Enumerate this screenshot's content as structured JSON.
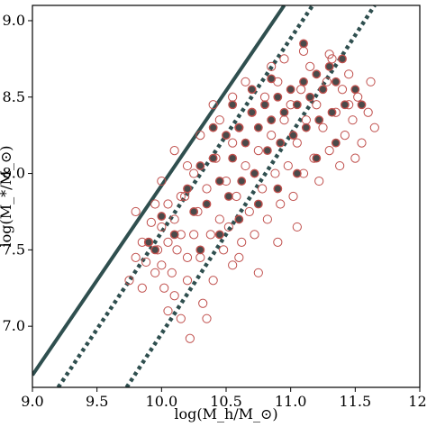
{
  "chart_data": {
    "type": "scatter",
    "title": "",
    "xlabel": "log(M_h/M_⊙)",
    "ylabel": "log(M_*/M_⊙)",
    "xlim": [
      9.0,
      12.0
    ],
    "ylim": [
      6.6,
      9.1
    ],
    "xticks": [
      "9.0",
      "9.5",
      "10.0",
      "10.5",
      "11.0",
      "11.5",
      "12."
    ],
    "yticks": [
      "7.0",
      "7.5",
      "8.0",
      "8.5",
      "9.0"
    ],
    "grid": false,
    "colors": {
      "open_marker_edge": "#c0504d",
      "filled_marker_fill": "#4a4a4a",
      "relation_line": "#2f4f4f"
    },
    "lines": [
      {
        "style": "solid",
        "x": [
          9.0,
          10.95
        ],
        "y": [
          6.68,
          9.1
        ]
      },
      {
        "style": "dotted",
        "x": [
          9.2,
          11.17
        ],
        "y": [
          6.6,
          9.1
        ]
      },
      {
        "style": "dotted",
        "x": [
          9.73,
          11.65
        ],
        "y": [
          6.6,
          9.1
        ]
      }
    ],
    "series": [
      {
        "marker": "open-circle",
        "points": [
          [
            9.75,
            7.3
          ],
          [
            9.8,
            7.45
          ],
          [
            9.85,
            7.55
          ],
          [
            9.88,
            7.42
          ],
          [
            9.9,
            7.55
          ],
          [
            9.92,
            7.68
          ],
          [
            9.95,
            7.8
          ],
          [
            9.95,
            7.35
          ],
          [
            9.97,
            7.5
          ],
          [
            10.0,
            7.65
          ],
          [
            10.0,
            7.4
          ],
          [
            10.02,
            7.25
          ],
          [
            10.05,
            7.8
          ],
          [
            10.05,
            7.55
          ],
          [
            10.08,
            7.35
          ],
          [
            10.1,
            7.7
          ],
          [
            10.1,
            7.2
          ],
          [
            10.12,
            7.5
          ],
          [
            10.15,
            7.6
          ],
          [
            10.15,
            7.05
          ],
          [
            10.18,
            7.85
          ],
          [
            10.2,
            7.45
          ],
          [
            10.2,
            7.3
          ],
          [
            10.22,
            6.92
          ],
          [
            10.25,
            8.0
          ],
          [
            10.25,
            7.6
          ],
          [
            10.28,
            7.75
          ],
          [
            10.3,
            7.45
          ],
          [
            10.32,
            7.15
          ],
          [
            10.35,
            7.9
          ],
          [
            10.38,
            7.6
          ],
          [
            10.4,
            7.3
          ],
          [
            10.42,
            8.1
          ],
          [
            10.45,
            7.7
          ],
          [
            10.48,
            7.5
          ],
          [
            10.5,
            7.95
          ],
          [
            10.52,
            7.65
          ],
          [
            10.55,
            8.2
          ],
          [
            10.55,
            7.4
          ],
          [
            10.58,
            7.85
          ],
          [
            10.6,
            8.3
          ],
          [
            10.62,
            7.55
          ],
          [
            10.65,
            8.05
          ],
          [
            10.68,
            7.75
          ],
          [
            10.7,
            8.4
          ],
          [
            10.72,
            7.6
          ],
          [
            10.75,
            8.15
          ],
          [
            10.78,
            7.9
          ],
          [
            10.8,
            8.5
          ],
          [
            10.82,
            7.7
          ],
          [
            10.85,
            8.25
          ],
          [
            10.88,
            8.0
          ],
          [
            10.9,
            8.6
          ],
          [
            10.92,
            7.8
          ],
          [
            10.95,
            8.35
          ],
          [
            10.98,
            8.05
          ],
          [
            11.0,
            8.45
          ],
          [
            11.02,
            7.85
          ],
          [
            11.05,
            8.2
          ],
          [
            11.08,
            8.55
          ],
          [
            11.1,
            8.0
          ],
          [
            11.12,
            8.35
          ],
          [
            11.15,
            8.7
          ],
          [
            11.18,
            8.1
          ],
          [
            11.2,
            8.45
          ],
          [
            11.22,
            7.95
          ],
          [
            11.25,
            8.3
          ],
          [
            11.28,
            8.6
          ],
          [
            11.3,
            8.15
          ],
          [
            11.32,
            8.75
          ],
          [
            11.35,
            8.4
          ],
          [
            11.38,
            8.05
          ],
          [
            11.4,
            8.55
          ],
          [
            11.42,
            8.25
          ],
          [
            11.45,
            8.65
          ],
          [
            11.48,
            8.35
          ],
          [
            11.5,
            8.1
          ],
          [
            11.52,
            8.5
          ],
          [
            11.55,
            8.2
          ],
          [
            11.6,
            8.4
          ],
          [
            11.62,
            8.6
          ],
          [
            11.65,
            8.3
          ],
          [
            9.8,
            7.75
          ],
          [
            9.85,
            7.25
          ],
          [
            10.0,
            7.95
          ],
          [
            10.05,
            7.1
          ],
          [
            10.2,
            8.05
          ],
          [
            10.1,
            8.15
          ],
          [
            10.3,
            8.25
          ],
          [
            10.45,
            8.35
          ],
          [
            10.35,
            7.05
          ],
          [
            10.6,
            7.45
          ],
          [
            10.75,
            7.35
          ],
          [
            10.9,
            7.55
          ],
          [
            11.05,
            7.65
          ],
          [
            10.15,
            7.85
          ],
          [
            10.4,
            8.45
          ],
          [
            10.55,
            8.5
          ],
          [
            10.65,
            8.6
          ],
          [
            10.85,
            8.7
          ],
          [
            10.95,
            8.75
          ],
          [
            11.1,
            8.8
          ],
          [
            11.3,
            8.78
          ],
          [
            11.45,
            8.45
          ]
        ]
      },
      {
        "marker": "filled-circle",
        "points": [
          [
            9.9,
            7.55
          ],
          [
            10.0,
            7.72
          ],
          [
            10.1,
            7.6
          ],
          [
            10.2,
            7.9
          ],
          [
            10.25,
            7.75
          ],
          [
            10.3,
            8.05
          ],
          [
            10.35,
            7.8
          ],
          [
            10.4,
            8.1
          ],
          [
            10.45,
            7.95
          ],
          [
            10.5,
            8.25
          ],
          [
            10.52,
            7.85
          ],
          [
            10.55,
            8.1
          ],
          [
            10.6,
            8.3
          ],
          [
            10.62,
            7.95
          ],
          [
            10.65,
            8.2
          ],
          [
            10.7,
            8.4
          ],
          [
            10.72,
            8.0
          ],
          [
            10.75,
            8.3
          ],
          [
            10.8,
            8.45
          ],
          [
            10.82,
            8.15
          ],
          [
            10.85,
            8.35
          ],
          [
            10.9,
            8.5
          ],
          [
            10.92,
            8.2
          ],
          [
            10.95,
            8.4
          ],
          [
            11.0,
            8.55
          ],
          [
            11.02,
            8.25
          ],
          [
            11.05,
            8.45
          ],
          [
            11.1,
            8.6
          ],
          [
            11.12,
            8.3
          ],
          [
            11.15,
            8.5
          ],
          [
            11.2,
            8.65
          ],
          [
            11.22,
            8.35
          ],
          [
            11.25,
            8.55
          ],
          [
            11.3,
            8.7
          ],
          [
            11.32,
            8.4
          ],
          [
            11.35,
            8.6
          ],
          [
            11.4,
            8.75
          ],
          [
            11.42,
            8.45
          ],
          [
            11.5,
            8.55
          ],
          [
            11.55,
            8.45
          ],
          [
            10.3,
            7.5
          ],
          [
            10.45,
            7.6
          ],
          [
            10.6,
            7.7
          ],
          [
            10.75,
            7.8
          ],
          [
            10.9,
            7.9
          ],
          [
            11.05,
            8.0
          ],
          [
            11.2,
            8.1
          ],
          [
            11.35,
            8.2
          ],
          [
            10.4,
            8.3
          ],
          [
            10.55,
            8.45
          ],
          [
            10.7,
            8.55
          ],
          [
            10.85,
            8.62
          ],
          [
            11.1,
            8.85
          ],
          [
            9.95,
            7.5
          ]
        ]
      }
    ]
  }
}
